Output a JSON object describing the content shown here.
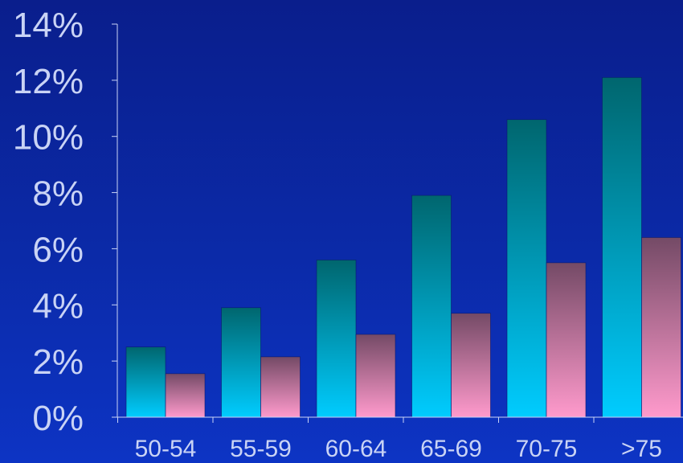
{
  "chart_data": {
    "type": "bar",
    "categories": [
      "50-54",
      "55-59",
      "60-64",
      "65-69",
      "70-75",
      ">75"
    ],
    "series": [
      {
        "values": [
          2.5,
          3.9,
          5.6,
          7.9,
          10.6,
          12.1
        ],
        "color_top": "#00666e",
        "color_bottom": "#00ccff"
      },
      {
        "values": [
          1.55,
          2.15,
          2.95,
          3.7,
          5.5,
          6.4
        ],
        "color_top": "#744a66",
        "color_bottom": "#ff9acc"
      }
    ],
    "ylim": [
      0,
      14
    ],
    "yticks": [
      "0%",
      "2%",
      "4%",
      "6%",
      "8%",
      "10%",
      "12%",
      "14%"
    ],
    "ytick_values": [
      0,
      2,
      4,
      6,
      8,
      10,
      12,
      14
    ],
    "grid": false,
    "colors": {
      "background_top": "#0a1e8c",
      "background_bottom": "#0d34c4",
      "axis": "#c9d3f5",
      "text": "#c9d3f5"
    }
  }
}
